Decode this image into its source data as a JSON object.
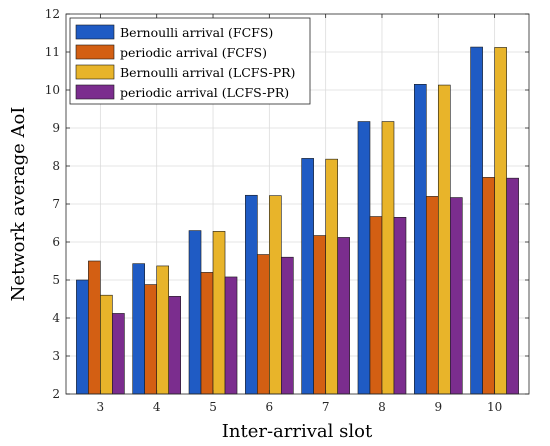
{
  "chart_data": {
    "type": "bar",
    "xlabel": "Inter-arrival slot",
    "ylabel": "Network average AoI",
    "categories": [
      "3",
      "4",
      "5",
      "6",
      "7",
      "8",
      "9",
      "10"
    ],
    "ylim": [
      2,
      12
    ],
    "yticks": [
      "2",
      "3",
      "4",
      "5",
      "6",
      "7",
      "8",
      "9",
      "10",
      "11",
      "12"
    ],
    "grid": true,
    "legend_position": "top-left",
    "series": [
      {
        "name": "Bernoulli arrival (FCFS)",
        "color": "#1f5bc4",
        "values": [
          5.0,
          5.43,
          6.3,
          7.23,
          8.2,
          9.17,
          10.15,
          11.13
        ]
      },
      {
        "name": "periodic arrival (FCFS)",
        "color": "#d35f13",
        "values": [
          5.5,
          4.88,
          5.2,
          5.67,
          6.17,
          6.67,
          7.2,
          7.7
        ]
      },
      {
        "name": "Bernoulli arrival (LCFS-PR)",
        "color": "#e8b42a",
        "values": [
          4.6,
          5.37,
          6.28,
          7.22,
          8.18,
          9.17,
          10.13,
          11.12
        ]
      },
      {
        "name": "periodic arrival (LCFS-PR)",
        "color": "#7b2d8e",
        "values": [
          4.12,
          4.57,
          5.08,
          5.6,
          6.12,
          6.65,
          7.17,
          7.68
        ]
      }
    ]
  }
}
